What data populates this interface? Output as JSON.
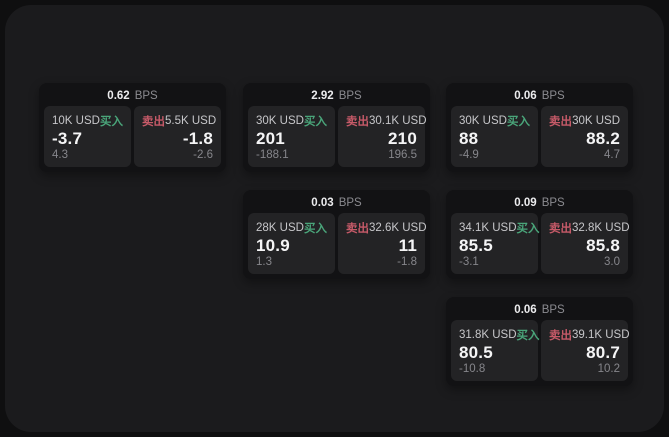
{
  "labels": {
    "bps": "BPS",
    "buy": "买入",
    "sell": "卖出"
  },
  "colors": {
    "page_bg": "#0f0f10",
    "panel_bg": "#1b1b1d",
    "card_bg": "#121214",
    "tile_bg": "#232325",
    "buy": "#4aa57a",
    "sell": "#c65a68"
  },
  "cards": [
    {
      "col": 1,
      "row": 1,
      "bps": "0.62",
      "buy": {
        "amount": "10K USD",
        "price": "-3.7",
        "delta": "4.3"
      },
      "sell": {
        "amount": "5.5K USD",
        "price": "-1.8",
        "delta": "-2.6"
      }
    },
    {
      "col": 2,
      "row": 1,
      "bps": "2.92",
      "buy": {
        "amount": "30K USD",
        "price": "201",
        "delta": "-188.1"
      },
      "sell": {
        "amount": "30.1K USD",
        "price": "210",
        "delta": "196.5"
      }
    },
    {
      "col": 3,
      "row": 1,
      "bps": "0.06",
      "buy": {
        "amount": "30K USD",
        "price": "88",
        "delta": "-4.9"
      },
      "sell": {
        "amount": "30K USD",
        "price": "88.2",
        "delta": "4.7"
      }
    },
    {
      "col": 2,
      "row": 2,
      "bps": "0.03",
      "buy": {
        "amount": "28K USD",
        "price": "10.9",
        "delta": "1.3"
      },
      "sell": {
        "amount": "32.6K USD",
        "price": "11",
        "delta": "-1.8"
      }
    },
    {
      "col": 3,
      "row": 2,
      "bps": "0.09",
      "buy": {
        "amount": "34.1K USD",
        "price": "85.5",
        "delta": "-3.1"
      },
      "sell": {
        "amount": "32.8K USD",
        "price": "85.8",
        "delta": "3.0"
      }
    },
    {
      "col": 3,
      "row": 3,
      "bps": "0.06",
      "buy": {
        "amount": "31.8K USD",
        "price": "80.5",
        "delta": "-10.8"
      },
      "sell": {
        "amount": "39.1K USD",
        "price": "80.7",
        "delta": "10.2"
      }
    }
  ]
}
